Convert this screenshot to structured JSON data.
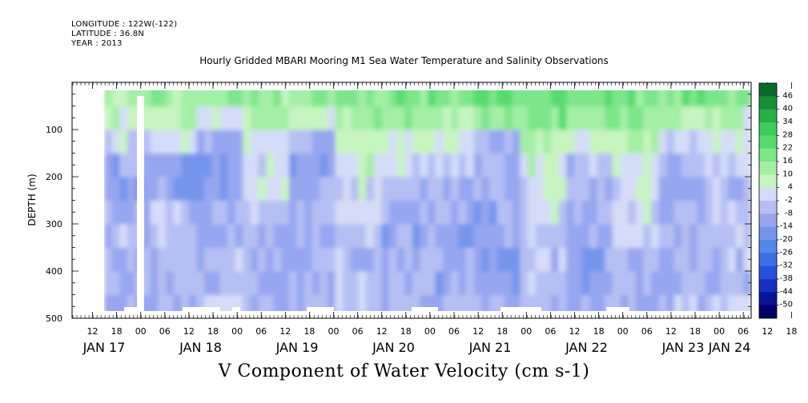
{
  "header": {
    "longitude": "LONGITUDE : 122W(-122)",
    "latitude": "LATITUDE : 36.8N",
    "year": "YEAR : 2013",
    "title": "Hourly Gridded MBARI Mooring M1 Sea Water Temperature and Salinity Observations"
  },
  "caption": "V Component of Water Velocity (cm s-1)",
  "chart_data": {
    "type": "heatmap",
    "title": "Hourly Gridded MBARI Mooring M1 Sea Water Temperature and Salinity Observations",
    "xlabel": "",
    "ylabel": "DEPTH (m)",
    "colorbar_label": "V Component of Water Velocity (cm s-1)",
    "y_axis": {
      "reversed": true,
      "ylim": [
        500,
        0
      ],
      "ticks": [
        100,
        200,
        300,
        400,
        500
      ]
    },
    "x_axis": {
      "hour_ticks": [
        "12",
        "18",
        "00",
        "06",
        "12",
        "18",
        "00",
        "06",
        "12",
        "18",
        "00",
        "06",
        "12",
        "18",
        "00",
        "06",
        "12",
        "18",
        "00",
        "06",
        "12",
        "18",
        "00",
        "06",
        "12",
        "18",
        "00",
        "06",
        "12",
        "18",
        "00",
        "06"
      ],
      "day_labels": [
        "JAN 17",
        "JAN 18",
        "JAN 19",
        "JAN 20",
        "JAN 21",
        "JAN 22",
        "JAN 23",
        "JAN 24"
      ]
    },
    "colorbar": {
      "levels": [
        -50,
        -44,
        -38,
        -32,
        -26,
        -20,
        -14,
        -8,
        -2,
        4,
        10,
        16,
        22,
        28,
        34,
        40,
        46
      ],
      "labels": [
        "46",
        "40",
        "34",
        "28",
        "22",
        "16",
        "10",
        "4",
        "-2",
        "-8",
        "-14",
        "-20",
        "-26",
        "-32",
        "-38",
        "-44",
        "-50"
      ],
      "colors_low_to_high": [
        "#00006a",
        "#0b1495",
        "#1830c2",
        "#2a4fdc",
        "#3d6ee6",
        "#5587ea",
        "#7595ed",
        "#97a6f0",
        "#b6bff3",
        "#d5dcf8",
        "#c6f5bf",
        "#a3efa6",
        "#7de58a",
        "#56db6e",
        "#3bcd5c",
        "#26b04a",
        "#188f3a",
        "#0b6a29"
      ]
    },
    "series": [
      {
        "values_v_cms": {
          "depth_m": [
            25,
            75,
            125,
            175,
            225,
            275,
            325,
            375,
            425,
            475
          ],
          "time_segments": [
            [
              "JAN 17 ~12",
              [
                12,
                8,
                0,
                -10,
                -12,
                -8,
                -6,
                -6,
                -8,
                -10
              ]
            ],
            [
              "JAN 18 ~00",
              [
                14,
                10,
                2,
                -12,
                -10,
                -4,
                -6,
                -8,
                -6,
                -8
              ]
            ],
            [
              "JAN 18 ~12",
              [
                16,
                4,
                -8,
                -14,
                -12,
                -8,
                -10,
                -6,
                -6,
                -4
              ]
            ],
            [
              "JAN 19 ~00",
              [
                14,
                10,
                4,
                2,
                0,
                -4,
                -8,
                -6,
                -8,
                -6
              ]
            ],
            [
              "JAN 19 ~12",
              [
                16,
                6,
                -8,
                -14,
                -10,
                -8,
                -10,
                -8,
                -8,
                -6
              ]
            ],
            [
              "JAN 20 ~00",
              [
                18,
                12,
                8,
                6,
                2,
                0,
                -2,
                -4,
                -4,
                -2
              ]
            ],
            [
              "JAN 20 ~12",
              [
                20,
                14,
                6,
                2,
                -4,
                -8,
                -10,
                -8,
                -6,
                -6
              ]
            ],
            [
              "JAN 21 ~00",
              [
                18,
                12,
                4,
                0,
                -6,
                -8,
                -10,
                -8,
                -10,
                -8
              ]
            ],
            [
              "JAN 21 ~12",
              [
                22,
                16,
                -8,
                -10,
                -8,
                -10,
                -10,
                -12,
                -12,
                -10
              ]
            ],
            [
              "JAN 22 ~00",
              [
                22,
                18,
                10,
                6,
                2,
                0,
                -2,
                -4,
                -6,
                -6
              ]
            ],
            [
              "JAN 22 ~12",
              [
                20,
                14,
                6,
                -4,
                -6,
                -8,
                -10,
                -12,
                -12,
                -8
              ]
            ],
            [
              "JAN 23 ~00",
              [
                20,
                16,
                8,
                4,
                2,
                0,
                -2,
                -6,
                -8,
                -8
              ]
            ],
            [
              "JAN 23 ~12",
              [
                18,
                10,
                0,
                -6,
                -8,
                -6,
                -6,
                -8,
                -8,
                -6
              ]
            ],
            [
              "JAN 24 ~00",
              [
                16,
                8,
                4,
                -2,
                -6,
                -4,
                -2,
                -4,
                -6,
                -4
              ]
            ]
          ]
        }
      }
    ],
    "missing_data": [
      {
        "type": "column",
        "time": "JAN 17 ~23-00",
        "depth_range_m": [
          30,
          500
        ]
      },
      {
        "type": "bottom-gap",
        "depth_m": 480
      }
    ]
  }
}
